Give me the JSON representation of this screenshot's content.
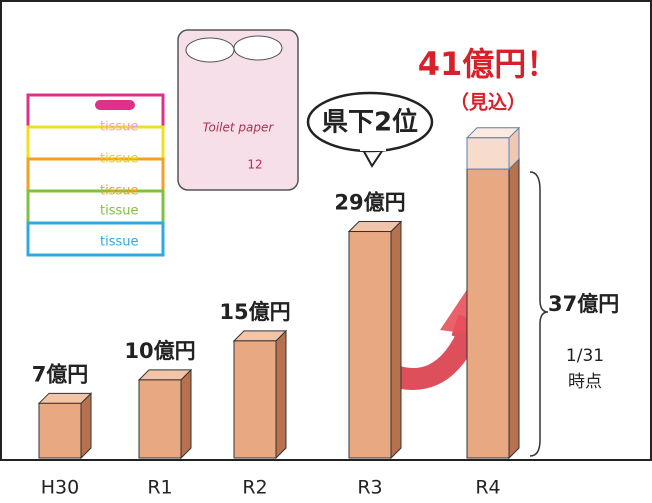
{
  "chart_data": {
    "type": "bar3d",
    "categories": [
      "H30",
      "R1",
      "R2",
      "R3",
      "R4"
    ],
    "values": [
      7,
      10,
      15,
      29,
      37
    ],
    "value_labels": [
      "7億円",
      "10億円",
      "15億円",
      "29億円",
      "37億円"
    ],
    "forecast": {
      "value": 41,
      "label": "41億円！",
      "note": "（見込）"
    },
    "ylim": [
      0,
      42
    ],
    "color": "#e8a882",
    "annotations": {
      "rank": "県下2位",
      "as_of": [
        "1/31",
        "時点"
      ]
    },
    "illustrations": {
      "tissue": "tissue",
      "toilet_paper": "Toilet paper",
      "roll_count": "12"
    }
  }
}
